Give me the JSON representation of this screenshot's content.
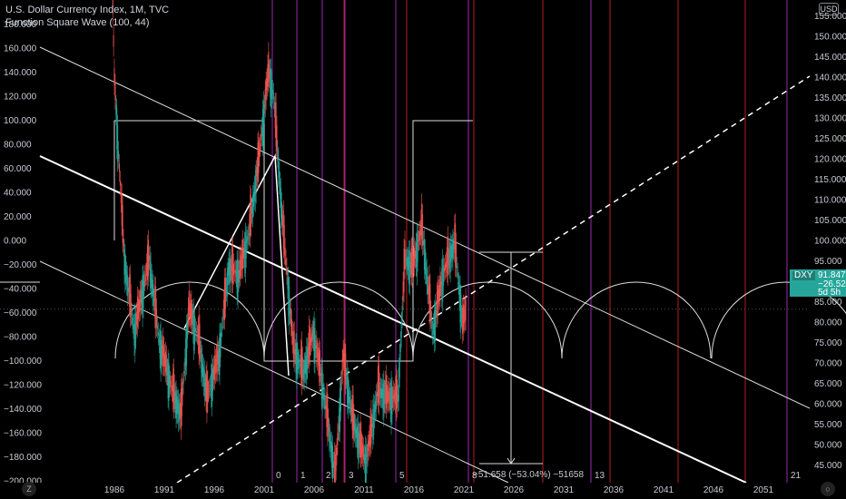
{
  "legend": {
    "line1": "U.S. Dollar Currency Index, 1M, TVC",
    "line2": "Function Square Wave (100, 44)"
  },
  "currency_unit": "USD",
  "badge": {
    "symbol": "DXY",
    "last": "91.847",
    "change": "−26.52%",
    "countdown": "5d 5h"
  },
  "measure_label": "−51.658 (−53.04%) −51658",
  "cycle_labels": [
    "0",
    "1",
    "2",
    "3",
    "5",
    "8",
    "13",
    "21"
  ],
  "corner": {
    "left": "Z",
    "right": "○"
  },
  "colors": {
    "background": "#000000",
    "purple": "#9c27b0",
    "red": "#b71c1c",
    "up": "#26a69a",
    "down": "#ef5350",
    "white": "#ffffff"
  },
  "chart_data": {
    "type": "line",
    "x_ticks": [
      "1986",
      "1991",
      "1996",
      "2001",
      "2006",
      "2011",
      "2016",
      "2021",
      "2026",
      "2031",
      "2036",
      "2041",
      "2046",
      "2051"
    ],
    "left_axis": {
      "ticks": [
        "180.000",
        "160.000",
        "140.000",
        "120.000",
        "100.000",
        "80.000",
        "60.000",
        "40.000",
        "20.000",
        "0.000",
        "−20.000",
        "−40.000",
        "−60.000",
        "−80.000",
        "−100.000",
        "−120.000",
        "−140.000",
        "−160.000",
        "−180.000",
        "−200.000"
      ]
    },
    "right_axis": {
      "ticks": [
        "155.000",
        "150.000",
        "145.000",
        "140.000",
        "135.000",
        "130.000",
        "125.000",
        "120.000",
        "115.000",
        "110.000",
        "105.000",
        "100.000",
        "95.000",
        "90.000",
        "85.000",
        "80.000",
        "75.000",
        "70.000",
        "65.000",
        "60.000",
        "55.000",
        "50.000",
        "45.000"
      ]
    },
    "dxy_monthly_approx": [
      {
        "x": 1985.2,
        "y": 164.7
      },
      {
        "x": 1986.0,
        "y": 120.0
      },
      {
        "x": 1987.0,
        "y": 98.0
      },
      {
        "x": 1988.0,
        "y": 89.0
      },
      {
        "x": 1989.5,
        "y": 98.0
      },
      {
        "x": 1990.5,
        "y": 88.0
      },
      {
        "x": 1991.8,
        "y": 82.0
      },
      {
        "x": 1992.7,
        "y": 78.9
      },
      {
        "x": 1993.5,
        "y": 92.0
      },
      {
        "x": 1994.5,
        "y": 88.0
      },
      {
        "x": 1995.3,
        "y": 81.0
      },
      {
        "x": 1996.5,
        "y": 86.0
      },
      {
        "x": 1997.5,
        "y": 97.0
      },
      {
        "x": 1998.5,
        "y": 96.0
      },
      {
        "x": 1999.5,
        "y": 101.0
      },
      {
        "x": 2000.5,
        "y": 110.0
      },
      {
        "x": 2001.5,
        "y": 121.0
      },
      {
        "x": 2002.0,
        "y": 118.0
      },
      {
        "x": 2003.0,
        "y": 101.0
      },
      {
        "x": 2004.0,
        "y": 87.0
      },
      {
        "x": 2005.0,
        "y": 84.0
      },
      {
        "x": 2006.0,
        "y": 89.0
      },
      {
        "x": 2007.0,
        "y": 82.0
      },
      {
        "x": 2008.2,
        "y": 71.3
      },
      {
        "x": 2009.0,
        "y": 86.0
      },
      {
        "x": 2010.0,
        "y": 78.0
      },
      {
        "x": 2011.3,
        "y": 73.0
      },
      {
        "x": 2012.5,
        "y": 82.0
      },
      {
        "x": 2013.5,
        "y": 81.0
      },
      {
        "x": 2014.5,
        "y": 81.0
      },
      {
        "x": 2015.2,
        "y": 98.0
      },
      {
        "x": 2016.0,
        "y": 97.0
      },
      {
        "x": 2016.9,
        "y": 102.0
      },
      {
        "x": 2018.0,
        "y": 89.0
      },
      {
        "x": 2019.0,
        "y": 96.0
      },
      {
        "x": 2020.2,
        "y": 100.0
      },
      {
        "x": 2021.0,
        "y": 90.0
      },
      {
        "x": 2021.4,
        "y": 91.8
      }
    ]
  }
}
